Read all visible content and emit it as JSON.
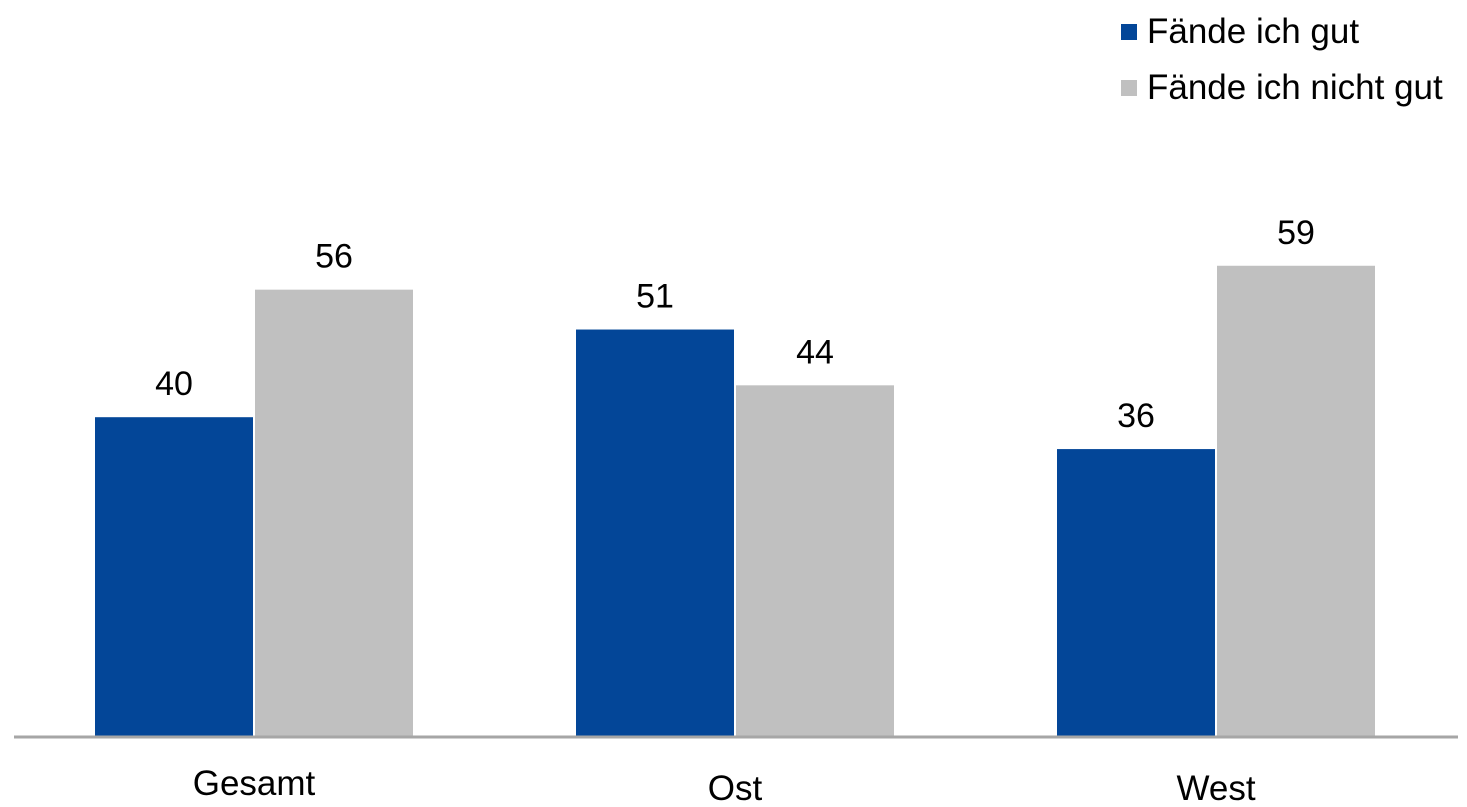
{
  "chart_data": {
    "type": "bar",
    "categories": [
      "Gesamt",
      "Ost",
      "West"
    ],
    "series": [
      {
        "name": "Fände ich gut",
        "values": [
          40,
          51,
          36
        ],
        "color": "#034698"
      },
      {
        "name": "Fände ich nicht gut",
        "values": [
          56,
          44,
          59
        ],
        "color": "#c0c0c0"
      }
    ],
    "ylim": [
      0,
      100
    ],
    "grid": false,
    "legend_position": "top-right",
    "data_labels": true,
    "axis_color": "#a6a6a6"
  }
}
